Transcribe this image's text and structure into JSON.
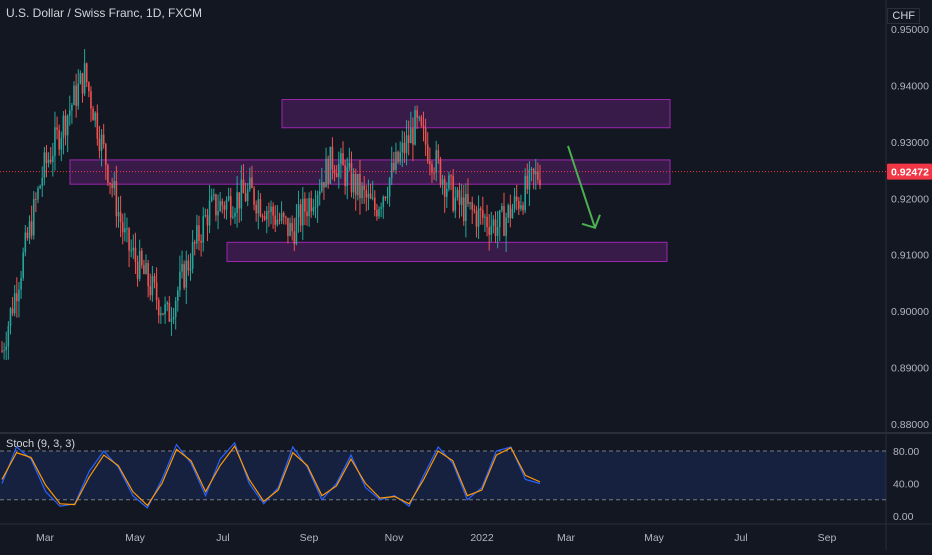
{
  "header": {
    "title": "U.S. Dollar / Swiss Franc, 1D, FXCM",
    "currency": "CHF"
  },
  "colors": {
    "background": "#131722",
    "bull": "#26a69a",
    "bear": "#ef5350",
    "zone_fill": "rgba(156,39,176,0.28)",
    "zone_border": "#9c27b0",
    "arrow": "#4caf50",
    "stoch_k": "#2962ff",
    "stoch_d": "#ff9800",
    "price_line": "#f23645"
  },
  "chart_data": [
    {
      "type": "candlestick",
      "title": "U.S. Dollar / Swiss Franc, 1D, FXCM",
      "ylim": [
        0.88,
        0.95
      ],
      "y_ticks": [
        "0.95000",
        "0.94000",
        "0.93000",
        "0.92000",
        "0.91000",
        "0.90000",
        "0.89000",
        "0.88000"
      ],
      "x_ticks": [
        "Mar",
        "May",
        "Jul",
        "Sep",
        "Nov",
        "2022",
        "Mar",
        "May",
        "Jul",
        "Sep"
      ],
      "last_price": "0.92472",
      "series_approx_closes": [
        {
          "month": "Feb 2021",
          "value": 0.893
        },
        {
          "month": "Mar 2021",
          "value": 0.925
        },
        {
          "month": "Apr 2021 (start)",
          "value": 0.942
        },
        {
          "month": "Apr 2021 (end)",
          "value": 0.912
        },
        {
          "month": "May 2021",
          "value": 0.899
        },
        {
          "month": "Jun 2021",
          "value": 0.918
        },
        {
          "month": "Jul 2021",
          "value": 0.921
        },
        {
          "month": "Aug 2021",
          "value": 0.914
        },
        {
          "month": "Sep 2021",
          "value": 0.927
        },
        {
          "month": "Oct 2021",
          "value": 0.918
        },
        {
          "month": "Nov 2021",
          "value": 0.933
        },
        {
          "month": "Dec 2021",
          "value": 0.919
        },
        {
          "month": "Jan 2022",
          "value": 0.915
        },
        {
          "month": "Feb 2022",
          "value": 0.9247
        }
      ],
      "zones": [
        {
          "low": 0.9325,
          "high": 0.9375
        },
        {
          "low": 0.9225,
          "high": 0.9268
        },
        {
          "low": 0.9088,
          "high": 0.9122
        }
      ],
      "projection": {
        "from": 0.9268,
        "to": 0.913,
        "direction": "down"
      }
    },
    {
      "type": "line",
      "title": "Stoch (9, 3, 3)",
      "ylim": [
        0,
        100
      ],
      "y_ticks": [
        "80.00",
        "40.00",
        "0.00"
      ],
      "levels": [
        80,
        20
      ],
      "series": [
        {
          "name": "%K",
          "values": [
            40,
            85,
            70,
            30,
            12,
            15,
            55,
            80,
            60,
            25,
            10,
            45,
            88,
            65,
            25,
            70,
            90,
            40,
            15,
            35,
            85,
            60,
            20,
            40,
            75,
            35,
            20,
            25,
            12,
            50,
            85,
            65,
            20,
            35,
            80,
            85,
            45,
            40
          ]
        },
        {
          "name": "%D",
          "values": [
            45,
            78,
            72,
            38,
            15,
            14,
            48,
            75,
            62,
            30,
            13,
            40,
            82,
            68,
            30,
            62,
            86,
            45,
            18,
            32,
            78,
            62,
            25,
            37,
            70,
            40,
            22,
            24,
            15,
            45,
            80,
            68,
            25,
            32,
            75,
            84,
            50,
            42
          ]
        }
      ]
    }
  ]
}
